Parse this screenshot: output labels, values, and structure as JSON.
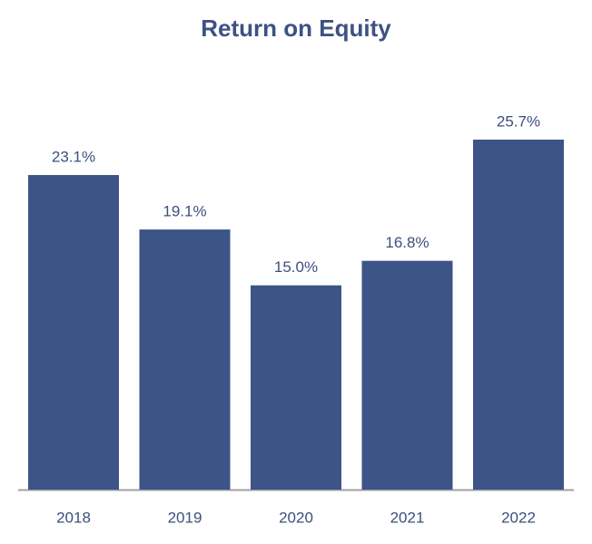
{
  "chart_data": {
    "type": "bar",
    "title": "Return on Equity",
    "categories": [
      "2018",
      "2019",
      "2020",
      "2021",
      "2022"
    ],
    "values": [
      23.1,
      19.1,
      15.0,
      16.8,
      25.7
    ],
    "value_labels": [
      "23.1%",
      "19.1%",
      "15.0%",
      "16.8%",
      "25.7%"
    ],
    "color": "#3c5486"
  }
}
